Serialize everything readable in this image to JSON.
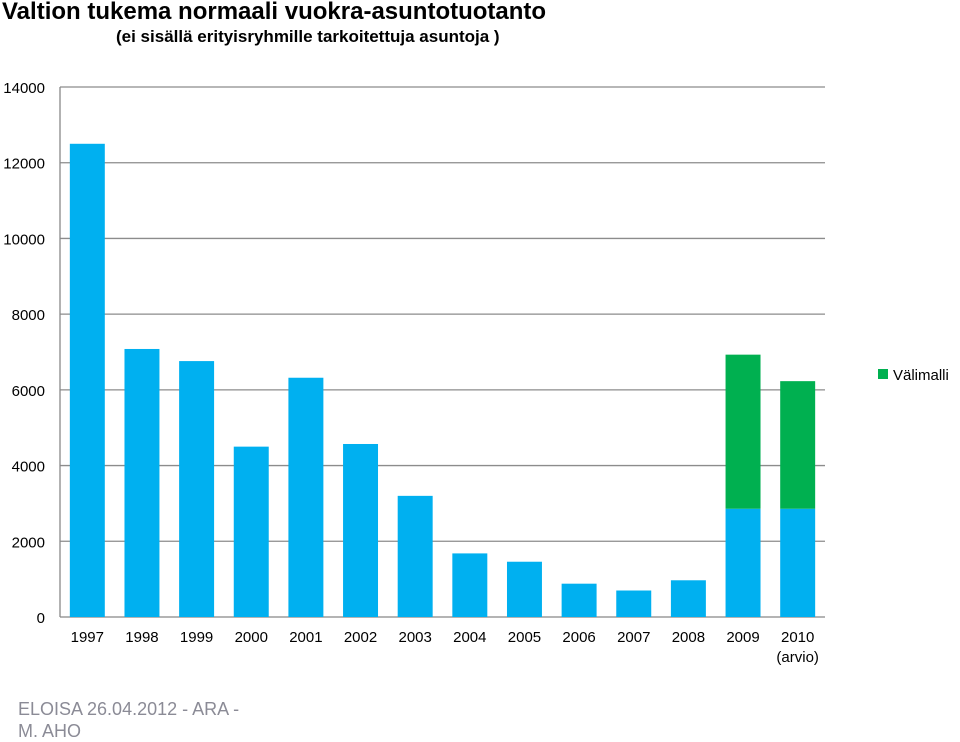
{
  "page": {
    "title": "Valtion tukema normaali vuokra-asuntotuotanto",
    "subtitle": "(ei sisällä erityisryhmille tarkoitettuja asuntoja )",
    "footer": "ELOISA 26.04.2012 - ARA - M. AHO"
  },
  "chart_data": {
    "type": "bar",
    "stacked": true,
    "categories": [
      "1997",
      "1998",
      "1999",
      "2000",
      "2001",
      "2002",
      "2003",
      "2004",
      "2005",
      "2006",
      "2007",
      "2008",
      "2009",
      "2010\n(arvio)"
    ],
    "series": [
      {
        "name": "",
        "color": "#00b0f0",
        "values": [
          12500,
          7080,
          6760,
          4500,
          6320,
          4570,
          3200,
          1680,
          1460,
          880,
          700,
          970,
          2860,
          2860
        ]
      },
      {
        "name": "Välimalli",
        "color": "#00b050",
        "values": [
          0,
          0,
          0,
          0,
          0,
          0,
          0,
          0,
          0,
          0,
          0,
          0,
          4070,
          3370
        ]
      }
    ],
    "ylim": [
      0,
      14000
    ],
    "yticks": [
      0,
      2000,
      4000,
      6000,
      8000,
      10000,
      12000,
      14000
    ],
    "grid": true,
    "legend_position": "right"
  }
}
